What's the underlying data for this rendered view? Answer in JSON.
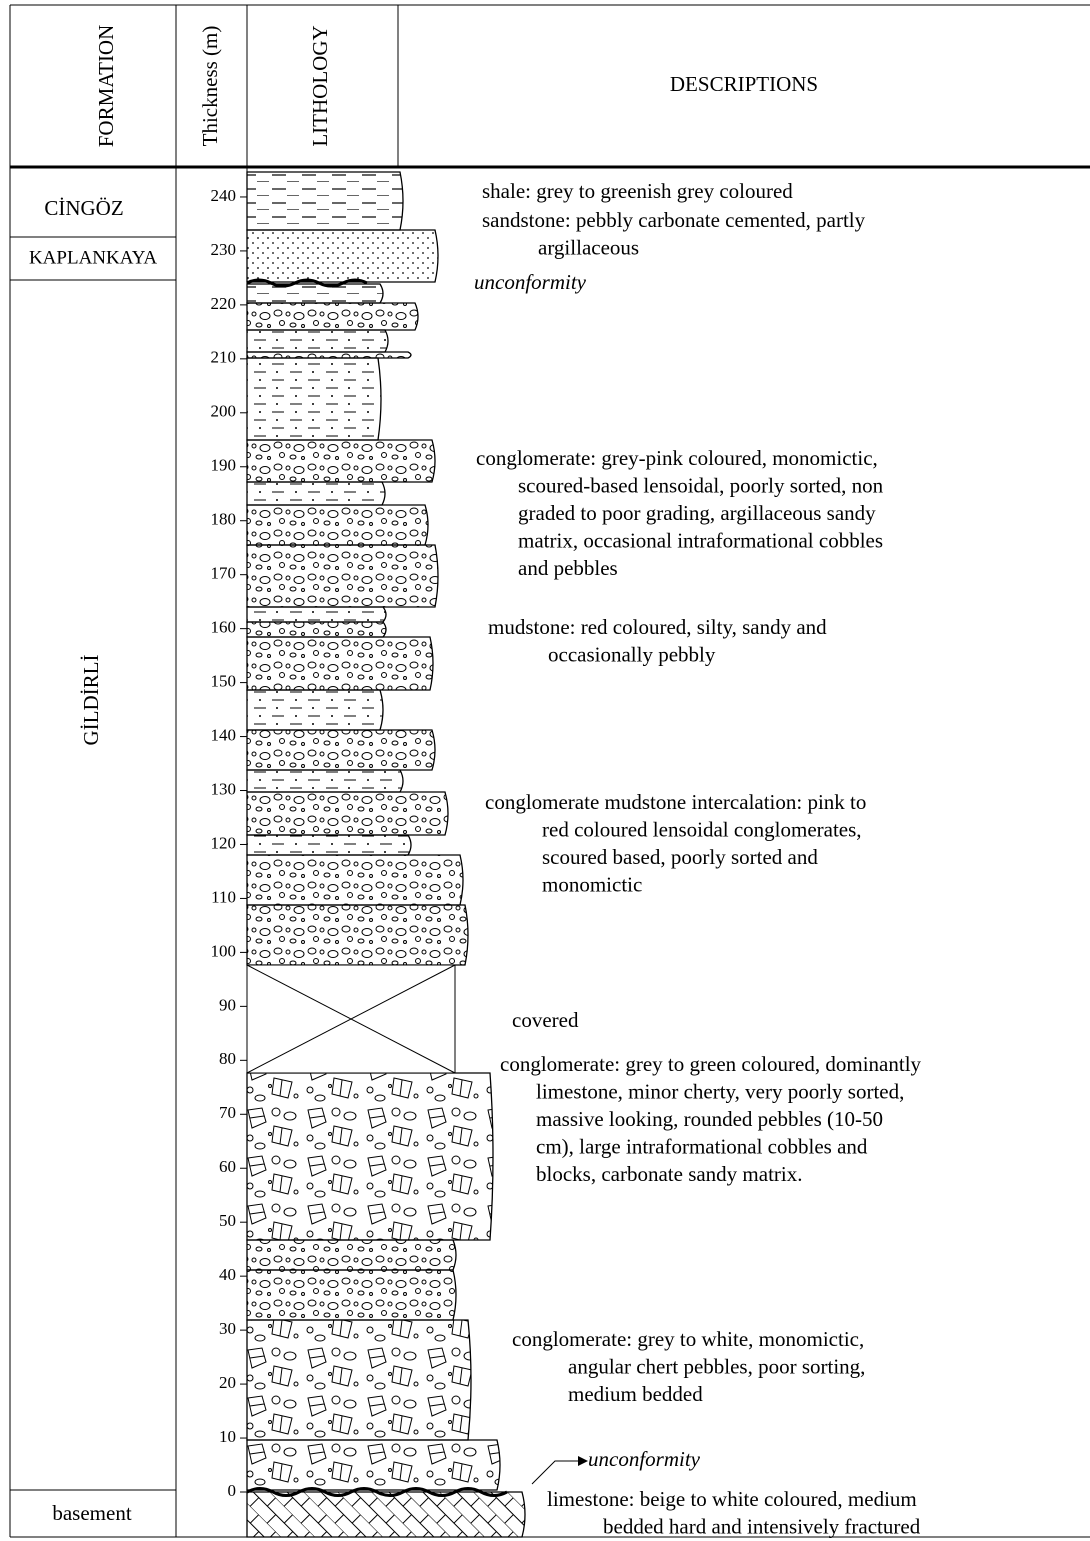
{
  "header": {
    "formation": "FORMATION",
    "thickness": "Thickness (m)",
    "lithology": "LITHOLOGY",
    "descriptions": "DESCRIPTIONS"
  },
  "formations": [
    "CİNGÖZ",
    "KAPLANKAYA",
    "GİLDİRLİ",
    "basement"
  ],
  "thickness_ticks": [
    0,
    10,
    20,
    30,
    40,
    50,
    60,
    70,
    80,
    90,
    100,
    110,
    120,
    130,
    140,
    150,
    160,
    170,
    180,
    190,
    200,
    210,
    220,
    230,
    240
  ],
  "descriptions": [
    [
      "shale: grey to greenish grey coloured"
    ],
    [
      "sandstone: pebbly carbonate cemented, partly",
      "argillaceous"
    ],
    [
      "unconformity"
    ],
    [
      "conglomerate: grey-pink coloured, monomictic,",
      "scoured-based lensoidal, poorly sorted, non",
      "graded to poor grading, argillaceous sandy",
      "matrix, occasional intraformational cobbles",
      "and pebbles"
    ],
    [
      "mudstone: red coloured, silty, sandy and",
      "occasionally pebbly"
    ],
    [
      "conglomerate mudstone intercalation: pink to",
      "red coloured lensoidal conglomerates,",
      "scoured based, poorly sorted and",
      "monomictic"
    ],
    [
      "covered"
    ],
    [
      "conglomerate: grey to green coloured, dominantly",
      "limestone, minor cherty, very poorly sorted,",
      "massive looking, rounded pebbles (10-50",
      "cm), large intraformational cobbles and",
      "blocks, carbonate sandy matrix."
    ],
    [
      "conglomerate: grey to white, monomictic,",
      "angular chert pebbles, poor sorting,",
      "medium bedded"
    ],
    [
      "unconformity"
    ],
    [
      "limestone: beige to white coloured, medium",
      "bedded hard and intensively fractured"
    ]
  ]
}
